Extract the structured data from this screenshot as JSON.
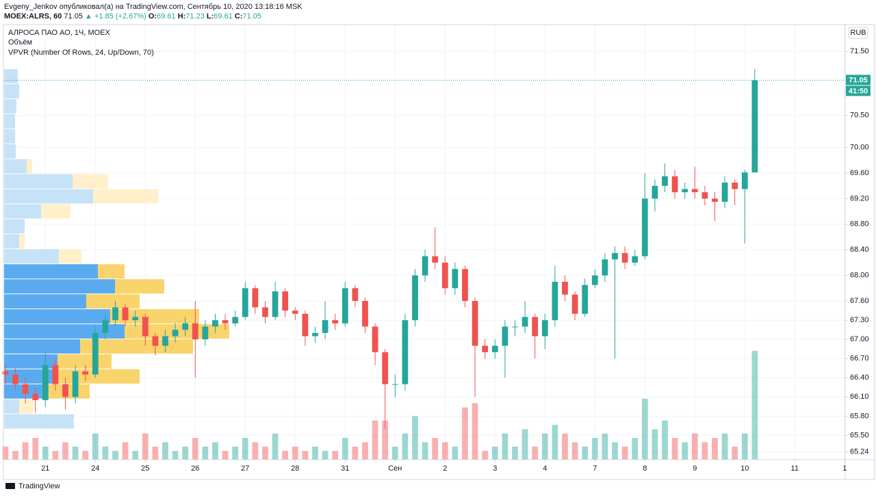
{
  "header": {
    "line1": "Evgeny_Jenkov опубликовал(а) на TradingView.com, Сентябрь 10, 2020 13:18:16 MSK",
    "symbol": "MOEX:ALRS, 60",
    "price": "71.05",
    "change": "▲ +1.85 (+2.67%)",
    "o_label": "O:",
    "o": "69.61",
    "h_label": "H:",
    "h": "71.23",
    "l_label": "L:",
    "l": "69.61",
    "c_label": "C:",
    "c": "71.05"
  },
  "chart_data": {
    "type": "candlestick",
    "title": "АЛРОСА ПАО АО, 1Ч, MOEX",
    "volume_label": "Объём",
    "vpvr_label": "VPVR (Number Of Rows, 24, Up/Down, 70)",
    "currency": "RUB",
    "price_label": "71.05",
    "countdown": "41:50",
    "up_color": "#26a69a",
    "down_color": "#ef5350",
    "open": [
      66.5,
      66.45,
      66.3,
      66.15,
      66.05,
      66.6,
      66.3,
      66.1,
      66.5,
      66.45,
      67.1,
      67.3,
      67.5,
      67.3,
      67.35,
      67.05,
      66.9,
      67.05,
      67.15,
      67.25,
      67.0,
      67.2,
      67.3,
      67.25,
      67.35,
      67.8,
      67.5,
      67.35,
      67.75,
      67.45,
      67.4,
      67.05,
      67.1,
      67.3,
      67.25,
      67.8,
      67.6,
      67.2,
      66.8,
      66.3,
      66.3,
      67.3,
      68.0,
      68.3,
      68.2,
      67.8,
      68.1,
      67.6,
      66.9,
      66.8,
      66.9,
      67.2,
      67.2,
      67.35,
      67.05,
      67.3,
      67.9,
      67.7,
      67.4,
      67.85,
      68.0,
      68.25,
      68.35,
      68.2,
      68.3,
      69.2,
      69.4,
      69.55,
      69.3,
      69.35,
      69.3,
      69.2,
      69.15,
      69.45,
      69.35,
      69.61
    ],
    "high": [
      66.6,
      66.55,
      66.4,
      66.25,
      66.8,
      66.7,
      66.4,
      66.6,
      66.6,
      67.2,
      67.4,
      67.6,
      67.55,
      67.45,
      67.4,
      67.1,
      67.15,
      67.25,
      67.35,
      67.6,
      67.3,
      67.4,
      67.4,
      67.45,
      67.9,
      67.85,
      67.6,
      67.9,
      67.8,
      67.5,
      67.45,
      67.2,
      67.6,
      67.4,
      67.9,
      67.85,
      67.65,
      67.25,
      66.85,
      66.45,
      67.4,
      68.1,
      68.4,
      68.75,
      68.3,
      68.2,
      68.15,
      67.65,
      67.0,
      67.0,
      67.3,
      67.3,
      67.6,
      67.4,
      67.4,
      68.15,
      68.0,
      67.75,
      67.95,
      68.1,
      68.35,
      68.45,
      68.45,
      68.4,
      69.6,
      69.5,
      69.75,
      69.65,
      69.45,
      69.7,
      69.4,
      69.3,
      69.55,
      69.5,
      69.65,
      71.23
    ],
    "low": [
      66.3,
      66.2,
      66.0,
      65.85,
      65.95,
      66.2,
      65.9,
      66.0,
      66.35,
      66.4,
      67.0,
      67.2,
      67.2,
      67.2,
      66.9,
      66.75,
      66.8,
      66.95,
      67.05,
      66.4,
      66.9,
      67.1,
      67.15,
      67.2,
      67.3,
      67.4,
      67.25,
      67.3,
      67.35,
      67.3,
      66.9,
      66.95,
      67.0,
      67.15,
      67.2,
      67.5,
      67.1,
      66.6,
      65.6,
      66.1,
      66.2,
      67.2,
      67.9,
      68.1,
      67.7,
      67.7,
      67.5,
      66.1,
      66.7,
      66.7,
      66.4,
      67.05,
      67.1,
      66.7,
      66.85,
      67.2,
      67.6,
      67.3,
      67.35,
      67.8,
      67.9,
      66.7,
      68.1,
      68.15,
      68.25,
      69.0,
      69.3,
      69.2,
      69.2,
      69.2,
      69.1,
      68.85,
      69.05,
      69.1,
      68.5,
      69.61
    ],
    "close": [
      66.45,
      66.3,
      66.15,
      66.05,
      66.6,
      66.3,
      66.1,
      66.5,
      66.45,
      67.1,
      67.3,
      67.5,
      67.3,
      67.35,
      67.05,
      66.9,
      67.05,
      67.15,
      67.25,
      67.0,
      67.2,
      67.3,
      67.25,
      67.35,
      67.8,
      67.5,
      67.35,
      67.75,
      67.45,
      67.4,
      67.05,
      67.1,
      67.3,
      67.25,
      67.8,
      67.6,
      67.2,
      66.8,
      66.3,
      66.3,
      67.3,
      68.0,
      68.3,
      68.2,
      67.8,
      68.1,
      67.6,
      66.9,
      66.8,
      66.9,
      67.2,
      67.2,
      67.35,
      67.05,
      67.3,
      67.9,
      67.7,
      67.4,
      67.85,
      68.0,
      68.25,
      68.35,
      68.2,
      68.3,
      69.2,
      69.4,
      69.55,
      69.3,
      69.35,
      69.3,
      69.2,
      69.15,
      69.45,
      69.35,
      69.61,
      71.05
    ],
    "volume": [
      3,
      2,
      4,
      5,
      3,
      2,
      4,
      3,
      2,
      6,
      3,
      2,
      4,
      2,
      6,
      3,
      4,
      2,
      3,
      5,
      3,
      4,
      2,
      3,
      5,
      4,
      3,
      6,
      2,
      3,
      2,
      3,
      2,
      2,
      5,
      3,
      4,
      9,
      9,
      3,
      6,
      10,
      4,
      5,
      4,
      3,
      12,
      13,
      2,
      3,
      6,
      3,
      7,
      3,
      6,
      8,
      6,
      4,
      3,
      5,
      6,
      4,
      3,
      5,
      14,
      7,
      9,
      5,
      4,
      6,
      4,
      5,
      6,
      3,
      6,
      25
    ],
    "volume_ylim": [
      0,
      100
    ],
    "vpvr": {
      "up": [
        20,
        22,
        18,
        16,
        16,
        17,
        33,
        100,
        130,
        54,
        30,
        22,
        80,
        137,
        162,
        120,
        155,
        176,
        111,
        78,
        78,
        62,
        22,
        102
      ],
      "down": [
        0,
        0,
        0,
        0,
        0,
        0,
        8,
        52,
        95,
        43,
        0,
        8,
        33,
        39,
        72,
        78,
        130,
        153,
        165,
        79,
        120,
        63,
        20,
        0
      ],
      "value_area_rows": [
        13,
        21
      ],
      "colors": {
        "up": "#c6e2f7",
        "down": "#fff0c9",
        "up_value_area": "#5aaaf0",
        "down_value_area": "#f9d36b"
      }
    },
    "vpvr_xlim": [
      0,
      1230
    ],
    "xlim": [
      -0.2,
      84.05
    ],
    "xticks": [
      {
        "value": 4,
        "label": "21"
      },
      {
        "value": 9,
        "label": "24"
      },
      {
        "value": 14,
        "label": "25"
      },
      {
        "value": 19,
        "label": "26"
      },
      {
        "value": 24,
        "label": "27"
      },
      {
        "value": 29,
        "label": "28"
      },
      {
        "value": 34,
        "label": "31"
      },
      {
        "value": 39,
        "label": "Сен"
      },
      {
        "value": 44,
        "label": "2"
      },
      {
        "value": 49,
        "label": "3"
      },
      {
        "value": 54,
        "label": "4"
      },
      {
        "value": 59,
        "label": "7"
      },
      {
        "value": 64,
        "label": "8"
      },
      {
        "value": 69,
        "label": "9"
      },
      {
        "value": 74,
        "label": "10"
      },
      {
        "value": 79,
        "label": "11"
      },
      {
        "value": 84,
        "label": "1"
      }
    ],
    "ylim": [
      65.12,
      71.92
    ],
    "yticks": [
      {
        "value": 71.5,
        "label": "71.50"
      },
      {
        "value": 70.5,
        "label": "70.50"
      },
      {
        "value": 70,
        "label": "70.00"
      },
      {
        "value": 69.6,
        "label": "69.60"
      },
      {
        "value": 69.2,
        "label": "69.20"
      },
      {
        "value": 68.8,
        "label": "68.80"
      },
      {
        "value": 68.4,
        "label": "68.40"
      },
      {
        "value": 68,
        "label": "68.00"
      },
      {
        "value": 67.6,
        "label": "67.60"
      },
      {
        "value": 67.3,
        "label": "67.30"
      },
      {
        "value": 67,
        "label": "67.00"
      },
      {
        "value": 66.7,
        "label": "66.70"
      },
      {
        "value": 66.4,
        "label": "66.40"
      },
      {
        "value": 66.1,
        "label": "66.10"
      },
      {
        "value": 65.8,
        "label": "65.80"
      },
      {
        "value": 65.5,
        "label": "65.50"
      },
      {
        "value": 65.24,
        "label": "65.24"
      }
    ],
    "grid": true
  },
  "footer": {
    "brand": "TradingView"
  }
}
